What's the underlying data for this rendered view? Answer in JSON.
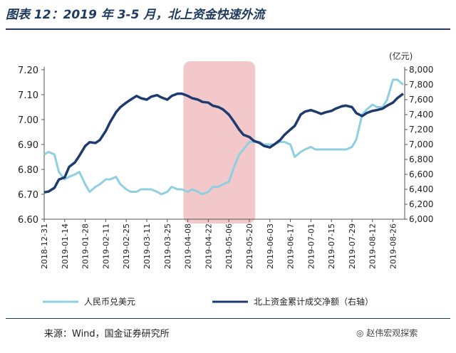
{
  "title": "图表 12：2019 年 3-5 月，北上资金快速外流",
  "unit_right": "(亿元)",
  "source": "来源：Wind，国金证券研究所",
  "wechat_badge": "赵伟宏观探索",
  "colors": {
    "usdcny": "#8ecfe0",
    "northbound": "#1f3a6e",
    "highlight": "#e9a3a6",
    "title": "#1f3a5f"
  },
  "chart_data": {
    "type": "line",
    "highlight_range": [
      "2019-04-05",
      "2019-05-24"
    ],
    "x_ticks": [
      "2018-12-31",
      "2019-01-14",
      "2019-01-28",
      "2019-02-11",
      "2019-02-25",
      "2019-03-11",
      "2019-03-25",
      "2019-04-08",
      "2019-04-22",
      "2019-05-06",
      "2019-05-20",
      "2019-06-03",
      "2019-06-17",
      "2019-07-01",
      "2019-07-15",
      "2019-07-29",
      "2019-08-12",
      "2019-08-26"
    ],
    "y_left": {
      "min": 6.6,
      "max": 7.2,
      "ticks": [
        "6.60",
        "6.70",
        "6.80",
        "6.90",
        "7.00",
        "7.10",
        "7.20"
      ]
    },
    "y_right": {
      "min": 6000,
      "max": 8000,
      "ticks": [
        "6,000",
        "6,200",
        "6,400",
        "6,600",
        "6,800",
        "7,000",
        "7,200",
        "7,400",
        "7,600",
        "7,800",
        "8,000"
      ]
    },
    "series": [
      {
        "name": "人民币兑美元",
        "axis": "left",
        "points": [
          [
            "2018-12-31",
            6.86
          ],
          [
            "2019-01-03",
            6.87
          ],
          [
            "2019-01-07",
            6.86
          ],
          [
            "2019-01-10",
            6.79
          ],
          [
            "2019-01-14",
            6.76
          ],
          [
            "2019-01-17",
            6.77
          ],
          [
            "2019-01-21",
            6.78
          ],
          [
            "2019-01-24",
            6.79
          ],
          [
            "2019-01-28",
            6.74
          ],
          [
            "2019-01-31",
            6.71
          ],
          [
            "2019-02-04",
            6.73
          ],
          [
            "2019-02-07",
            6.74
          ],
          [
            "2019-02-11",
            6.76
          ],
          [
            "2019-02-14",
            6.76
          ],
          [
            "2019-02-18",
            6.77
          ],
          [
            "2019-02-21",
            6.74
          ],
          [
            "2019-02-25",
            6.72
          ],
          [
            "2019-02-28",
            6.71
          ],
          [
            "2019-03-04",
            6.71
          ],
          [
            "2019-03-07",
            6.72
          ],
          [
            "2019-03-11",
            6.72
          ],
          [
            "2019-03-14",
            6.72
          ],
          [
            "2019-03-18",
            6.71
          ],
          [
            "2019-03-21",
            6.7
          ],
          [
            "2019-03-25",
            6.71
          ],
          [
            "2019-03-28",
            6.73
          ],
          [
            "2019-04-01",
            6.72
          ],
          [
            "2019-04-04",
            6.72
          ],
          [
            "2019-04-08",
            6.71
          ],
          [
            "2019-04-11",
            6.72
          ],
          [
            "2019-04-15",
            6.71
          ],
          [
            "2019-04-18",
            6.7
          ],
          [
            "2019-04-22",
            6.71
          ],
          [
            "2019-04-25",
            6.73
          ],
          [
            "2019-04-29",
            6.73
          ],
          [
            "2019-05-02",
            6.74
          ],
          [
            "2019-05-06",
            6.75
          ],
          [
            "2019-05-09",
            6.8
          ],
          [
            "2019-05-13",
            6.86
          ],
          [
            "2019-05-16",
            6.88
          ],
          [
            "2019-05-20",
            6.91
          ],
          [
            "2019-05-23",
            6.91
          ],
          [
            "2019-05-27",
            6.91
          ],
          [
            "2019-05-30",
            6.9
          ],
          [
            "2019-06-03",
            6.9
          ],
          [
            "2019-06-06",
            6.9
          ],
          [
            "2019-06-10",
            6.91
          ],
          [
            "2019-06-13",
            6.91
          ],
          [
            "2019-06-17",
            6.9
          ],
          [
            "2019-06-20",
            6.85
          ],
          [
            "2019-06-24",
            6.87
          ],
          [
            "2019-06-27",
            6.88
          ],
          [
            "2019-07-01",
            6.89
          ],
          [
            "2019-07-04",
            6.88
          ],
          [
            "2019-07-08",
            6.88
          ],
          [
            "2019-07-11",
            6.88
          ],
          [
            "2019-07-15",
            6.88
          ],
          [
            "2019-07-18",
            6.88
          ],
          [
            "2019-07-22",
            6.88
          ],
          [
            "2019-07-25",
            6.88
          ],
          [
            "2019-07-29",
            6.89
          ],
          [
            "2019-08-01",
            6.92
          ],
          [
            "2019-08-05",
            7.02
          ],
          [
            "2019-08-08",
            7.04
          ],
          [
            "2019-08-12",
            7.06
          ],
          [
            "2019-08-15",
            7.05
          ],
          [
            "2019-08-19",
            7.05
          ],
          [
            "2019-08-22",
            7.08
          ],
          [
            "2019-08-26",
            7.16
          ],
          [
            "2019-08-29",
            7.16
          ],
          [
            "2019-09-02",
            7.14
          ]
        ]
      },
      {
        "name": "北上资金累计成交净额（右轴）",
        "axis": "right",
        "points": [
          [
            "2018-12-31",
            6360
          ],
          [
            "2019-01-03",
            6370
          ],
          [
            "2019-01-07",
            6420
          ],
          [
            "2019-01-10",
            6530
          ],
          [
            "2019-01-14",
            6560
          ],
          [
            "2019-01-17",
            6700
          ],
          [
            "2019-01-21",
            6760
          ],
          [
            "2019-01-24",
            6850
          ],
          [
            "2019-01-28",
            6980
          ],
          [
            "2019-01-31",
            7030
          ],
          [
            "2019-02-04",
            7020
          ],
          [
            "2019-02-07",
            7060
          ],
          [
            "2019-02-11",
            7180
          ],
          [
            "2019-02-14",
            7300
          ],
          [
            "2019-02-18",
            7430
          ],
          [
            "2019-02-21",
            7500
          ],
          [
            "2019-02-25",
            7560
          ],
          [
            "2019-02-28",
            7600
          ],
          [
            "2019-03-04",
            7650
          ],
          [
            "2019-03-07",
            7620
          ],
          [
            "2019-03-11",
            7600
          ],
          [
            "2019-03-14",
            7640
          ],
          [
            "2019-03-18",
            7660
          ],
          [
            "2019-03-21",
            7630
          ],
          [
            "2019-03-25",
            7600
          ],
          [
            "2019-03-28",
            7650
          ],
          [
            "2019-04-01",
            7680
          ],
          [
            "2019-04-04",
            7680
          ],
          [
            "2019-04-08",
            7650
          ],
          [
            "2019-04-11",
            7620
          ],
          [
            "2019-04-15",
            7600
          ],
          [
            "2019-04-18",
            7570
          ],
          [
            "2019-04-22",
            7560
          ],
          [
            "2019-04-25",
            7520
          ],
          [
            "2019-04-29",
            7500
          ],
          [
            "2019-05-02",
            7470
          ],
          [
            "2019-05-06",
            7400
          ],
          [
            "2019-05-09",
            7320
          ],
          [
            "2019-05-13",
            7200
          ],
          [
            "2019-05-16",
            7130
          ],
          [
            "2019-05-20",
            7100
          ],
          [
            "2019-05-23",
            7050
          ],
          [
            "2019-05-27",
            7020
          ],
          [
            "2019-05-30",
            6980
          ],
          [
            "2019-06-03",
            6960
          ],
          [
            "2019-06-06",
            7000
          ],
          [
            "2019-06-10",
            7060
          ],
          [
            "2019-06-13",
            7130
          ],
          [
            "2019-06-17",
            7200
          ],
          [
            "2019-06-20",
            7250
          ],
          [
            "2019-06-24",
            7400
          ],
          [
            "2019-06-27",
            7440
          ],
          [
            "2019-07-01",
            7460
          ],
          [
            "2019-07-04",
            7440
          ],
          [
            "2019-07-08",
            7410
          ],
          [
            "2019-07-11",
            7430
          ],
          [
            "2019-07-15",
            7450
          ],
          [
            "2019-07-18",
            7480
          ],
          [
            "2019-07-22",
            7510
          ],
          [
            "2019-07-25",
            7520
          ],
          [
            "2019-07-29",
            7500
          ],
          [
            "2019-08-01",
            7420
          ],
          [
            "2019-08-05",
            7380
          ],
          [
            "2019-08-08",
            7420
          ],
          [
            "2019-08-12",
            7450
          ],
          [
            "2019-08-15",
            7460
          ],
          [
            "2019-08-19",
            7480
          ],
          [
            "2019-08-22",
            7520
          ],
          [
            "2019-08-26",
            7560
          ],
          [
            "2019-08-29",
            7620
          ],
          [
            "2019-09-02",
            7680
          ]
        ]
      }
    ]
  }
}
